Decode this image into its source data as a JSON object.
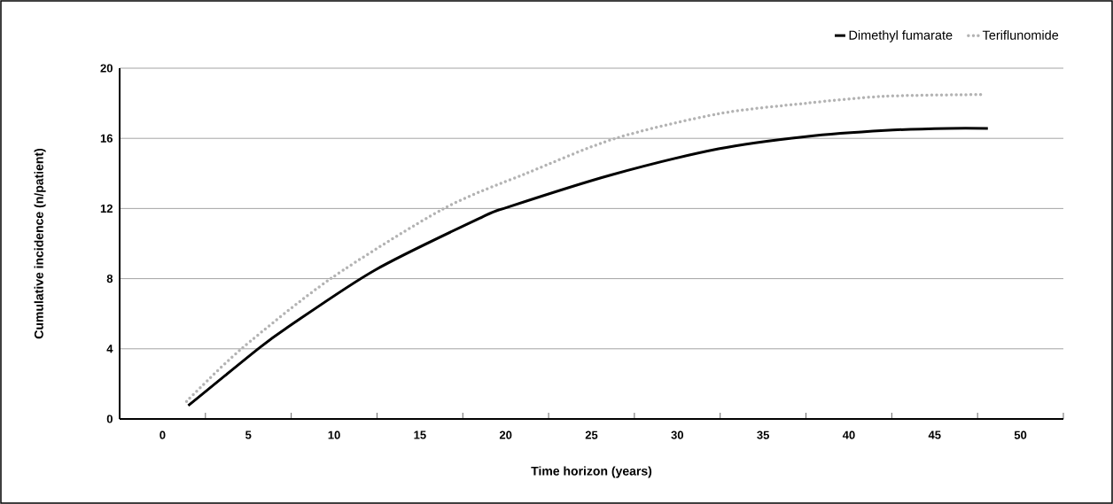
{
  "chart_data": {
    "type": "line",
    "xlabel": "Time horizon (years)",
    "ylabel": "Cumulative incidence (n/patient)",
    "xlim": [
      -2.5,
      52.5
    ],
    "ylim": [
      0,
      20
    ],
    "xticks": [
      0,
      5,
      10,
      15,
      20,
      25,
      30,
      35,
      40,
      45,
      50,
      {
        "value": 2.5,
        "label": null
      },
      {
        "value": 7.5,
        "label": null
      },
      {
        "value": 12.5,
        "label": null
      },
      {
        "value": 17.5,
        "label": null
      },
      {
        "value": 22.5,
        "label": null
      },
      {
        "value": 27.5,
        "label": null
      },
      {
        "value": 32.5,
        "label": null
      },
      {
        "value": 37.5,
        "label": null
      },
      {
        "value": 42.5,
        "label": null
      },
      {
        "value": 47.5,
        "label": null
      },
      {
        "value": 52.5,
        "label": null
      }
    ],
    "yticks": [
      0,
      4,
      8,
      12,
      16,
      20
    ],
    "grid": "y",
    "legend": "top right",
    "series": [
      {
        "name": "Dimethyl fumarate",
        "color": "#000000",
        "line_style": "solid",
        "x": [
          1.5,
          5.7,
          7.4,
          12.4,
          18.6,
          20.2,
          26.1,
          32.4,
          37.5,
          42.1,
          45.8,
          48.1
        ],
        "values": [
          0.76,
          4.1,
          5.3,
          8.5,
          11.5,
          12.1,
          13.9,
          15.4,
          16.1,
          16.45,
          16.57,
          16.57
        ]
      },
      {
        "name": "Teriflunomide",
        "color": "#b3b3b3",
        "line_style": "dotted",
        "x": [
          1.4,
          4.6,
          9.8,
          16.4,
          21.2,
          26.4,
          32.4,
          37.5,
          42.1,
          47.9
        ],
        "values": [
          1.0,
          4.0,
          8.0,
          12.0,
          14.0,
          16.0,
          17.4,
          18.0,
          18.4,
          18.5
        ]
      }
    ]
  }
}
